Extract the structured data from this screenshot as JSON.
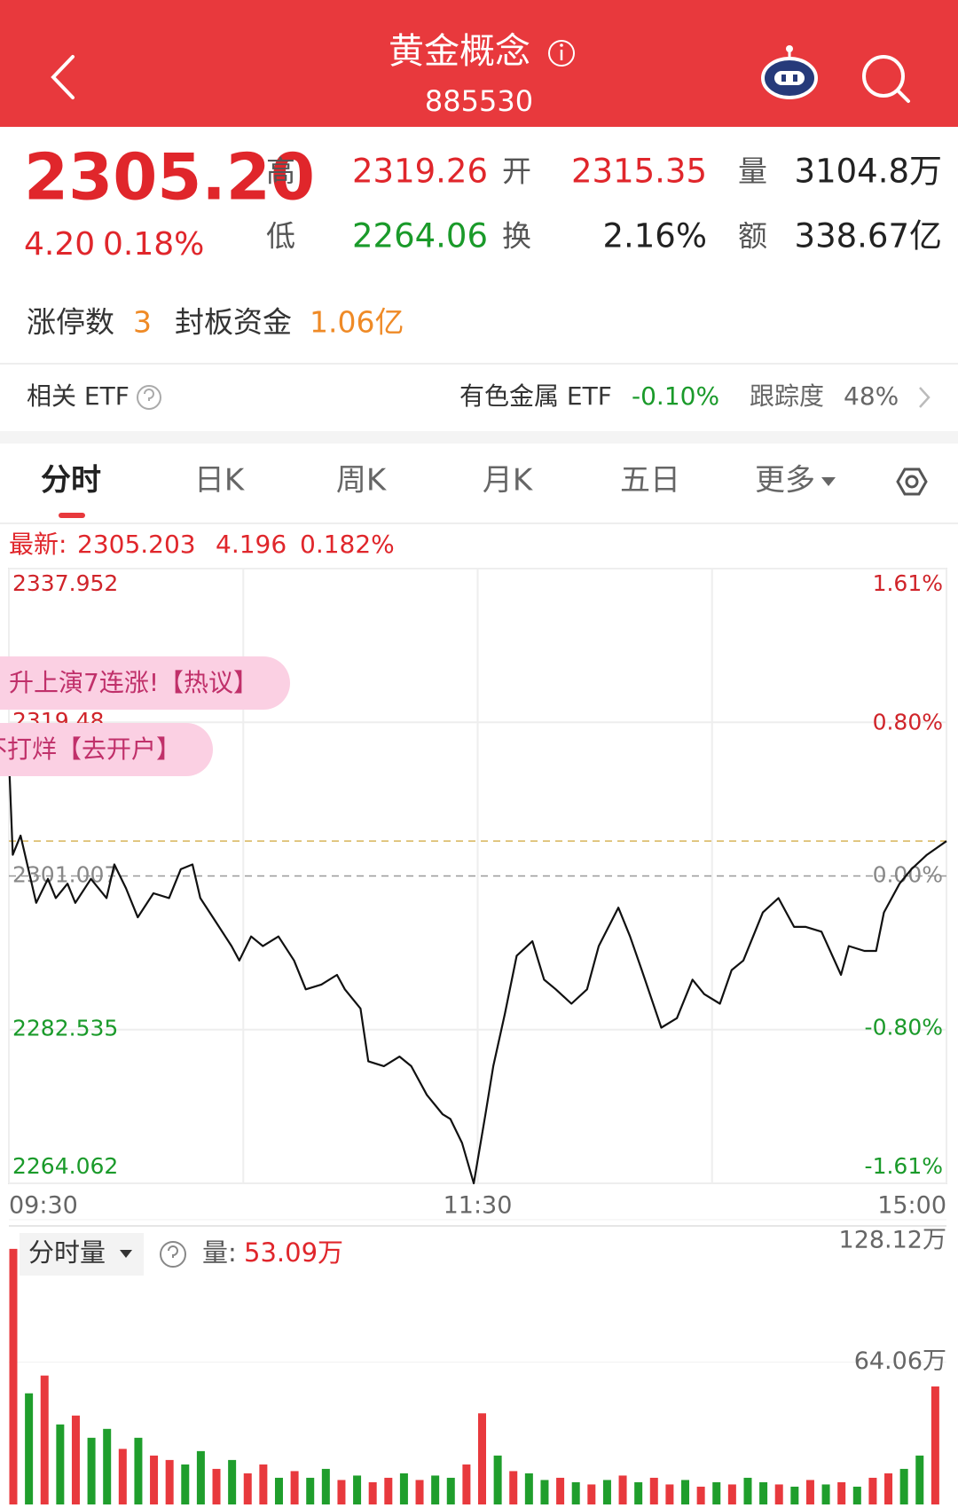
{
  "header": {
    "title": "黄金概念",
    "code": "885530"
  },
  "quote": {
    "price": "2305.20",
    "change": "4.20",
    "change_pct": "0.18%",
    "high": {
      "label": "高",
      "value": "2319.26"
    },
    "low": {
      "label": "低",
      "value": "2264.06"
    },
    "open": {
      "label": "开",
      "value": "2315.35"
    },
    "turnover": {
      "label": "换",
      "value": "2.16%"
    },
    "volume": {
      "label": "量",
      "value": "3104.8万"
    },
    "amount": {
      "label": "额",
      "value": "338.67亿"
    }
  },
  "limit_up": {
    "count_label": "涨停数",
    "count": "3",
    "fund_label": "封板资金",
    "fund": "1.06亿"
  },
  "etf": {
    "label": "相关 ETF",
    "name": "有色金属 ETF",
    "change": "-0.10%",
    "tracking_label": "跟踪度",
    "tracking": "48%"
  },
  "tabs": [
    "分时",
    "日K",
    "周K",
    "月K",
    "五日",
    "更多"
  ],
  "banners": [
    "升上演7连涨!【热议】",
    "不打烊【去开户】"
  ],
  "chart_data": [
    {
      "type": "line",
      "latest": {
        "label": "最新:",
        "price": 2305.203,
        "change": 4.196,
        "change_pct": "0.182%"
      },
      "x": [
        0,
        1,
        3,
        5,
        7,
        10,
        12,
        15,
        17,
        21,
        25,
        27,
        30,
        33,
        37,
        41,
        44,
        47,
        49,
        53,
        57,
        59,
        62,
        65,
        69,
        73,
        76,
        80,
        84,
        86,
        90,
        92,
        96,
        100,
        103,
        107,
        111,
        113,
        116,
        119,
        122,
        124,
        127,
        130,
        134,
        137,
        140,
        144,
        148,
        151,
        156,
        159,
        162,
        167,
        171,
        175,
        178,
        182,
        185,
        188,
        193,
        197,
        201,
        204,
        208,
        213,
        215,
        219,
        222,
        224,
        228,
        231,
        235,
        240
      ],
      "series": [
        {
          "color": "#111111",
          "values": [
            2315.35,
            2303.55,
            2305.86,
            2301.82,
            2297.78,
            2300.66,
            2298.35,
            2300.08,
            2297.78,
            2300.66,
            2298.35,
            2302.39,
            2299.51,
            2296.04,
            2298.93,
            2298.35,
            2301.82,
            2302.39,
            2298.35,
            2295.47,
            2292.58,
            2290.85,
            2293.73,
            2292.58,
            2293.73,
            2290.85,
            2287.38,
            2287.96,
            2289.12,
            2287.38,
            2285.08,
            2278.73,
            2278.15,
            2279.3,
            2278.15,
            2274.69,
            2272.38,
            2271.8,
            2268.91,
            2264.06,
            2272.38,
            2278.15,
            2284.5,
            2291.42,
            2293.16,
            2288.54,
            2287.38,
            2285.65,
            2287.38,
            2292.58,
            2297.2,
            2293.73,
            2289.69,
            2282.77,
            2283.92,
            2288.54,
            2286.81,
            2285.65,
            2289.69,
            2290.85,
            2296.62,
            2298.35,
            2294.89,
            2294.89,
            2294.31,
            2289.12,
            2292.58,
            2292.0,
            2292.0,
            2296.62,
            2300.08,
            2301.82,
            2303.55,
            2305.2
          ]
        }
      ],
      "xlim": [
        0,
        240
      ],
      "xticks": [
        {
          "value": 0,
          "label": "09:30"
        },
        {
          "value": 120,
          "label": "11:30"
        },
        {
          "value": 240,
          "label": "15:00"
        }
      ],
      "ylim": [
        2264.062,
        2337.952
      ],
      "yticks": [
        2337.952,
        2319.48,
        {
          "value": 2301.007,
          "label": "2301.007"
        },
        2282.535,
        2264.062
      ],
      "y2lim": [
        -1.61,
        1.61
      ],
      "y2ticks": [
        {
          "value": 1.61,
          "label": "1.61%"
        },
        {
          "value": 0.8,
          "label": "0.80%"
        },
        {
          "value": 0,
          "label": "0.00%"
        },
        {
          "value": -0.8,
          "label": "-0.80%"
        },
        {
          "value": -1.61,
          "label": "-1.61%"
        }
      ],
      "grid": true
    },
    {
      "type": "bar",
      "title": "分时量",
      "value_label": "量:",
      "value": "53.09万",
      "x": [
        0,
        4,
        8,
        12,
        16,
        20,
        24,
        28,
        32,
        36,
        40,
        44,
        48,
        52,
        56,
        60,
        64,
        68,
        72,
        76,
        80,
        84,
        88,
        92,
        96,
        100,
        104,
        108,
        112,
        116,
        120,
        124,
        128,
        132,
        136,
        140,
        144,
        148,
        152,
        156,
        160,
        164,
        168,
        172,
        176,
        180,
        184,
        188,
        192,
        196,
        200,
        204,
        208,
        212,
        216,
        220,
        224,
        228,
        232,
        236
      ],
      "values": [
        115,
        50,
        58,
        36,
        40,
        30,
        34,
        25,
        30,
        22,
        20,
        18,
        24,
        16,
        20,
        14,
        18,
        12,
        15,
        12,
        16,
        11,
        13,
        10,
        12,
        14,
        11,
        13,
        12,
        18,
        41,
        22,
        15,
        14,
        11,
        12,
        10,
        9,
        11,
        13,
        10,
        12,
        9,
        11,
        8,
        10,
        9,
        12,
        10,
        9,
        8,
        11,
        9,
        10,
        8,
        12,
        14,
        16,
        22,
        53.09
      ],
      "colors": [
        "#e8393d",
        "#1f9e2c",
        "#e8393d",
        "#1f9e2c",
        "#e8393d",
        "#1f9e2c",
        "#1f9e2c",
        "#e8393d",
        "#1f9e2c",
        "#e8393d",
        "#e8393d",
        "#1f9e2c",
        "#1f9e2c",
        "#e8393d",
        "#1f9e2c",
        "#e8393d",
        "#e8393d",
        "#1f9e2c",
        "#e8393d",
        "#1f9e2c",
        "#1f9e2c",
        "#e8393d",
        "#1f9e2c",
        "#e8393d",
        "#e8393d",
        "#1f9e2c",
        "#e8393d",
        "#1f9e2c",
        "#1f9e2c",
        "#e8393d",
        "#e8393d",
        "#1f9e2c",
        "#e8393d",
        "#1f9e2c",
        "#1f9e2c",
        "#e8393d",
        "#1f9e2c",
        "#e8393d",
        "#1f9e2c",
        "#e8393d",
        "#1f9e2c",
        "#e8393d",
        "#e8393d",
        "#1f9e2c",
        "#e8393d",
        "#1f9e2c",
        "#e8393d",
        "#1f9e2c",
        "#1f9e2c",
        "#e8393d",
        "#1f9e2c",
        "#e8393d",
        "#1f9e2c",
        "#e8393d",
        "#1f9e2c",
        "#e8393d",
        "#e8393d",
        "#1f9e2c",
        "#1f9e2c",
        "#e8393d"
      ],
      "xlim": [
        0,
        240
      ],
      "ylim": [
        0,
        128.12
      ],
      "yticks": [
        {
          "value": 64.06,
          "label": "64.06万"
        },
        {
          "value": 128.12,
          "label": "128.12万"
        }
      ]
    }
  ]
}
